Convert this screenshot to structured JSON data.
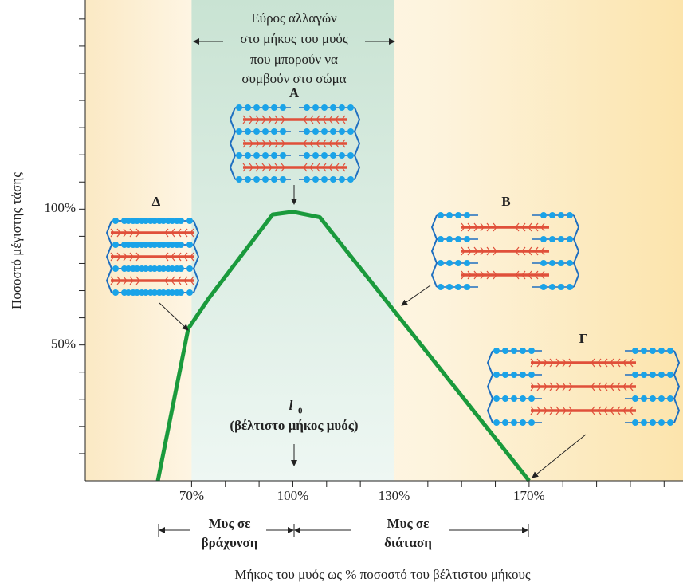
{
  "chart_data": {
    "type": "line",
    "x_label": "Μήκος του μυός ως % ποσοστό του βέλτιστου μήκους",
    "y_label": "Ποσοστό μέγιστης τάσης",
    "x": [
      60,
      69,
      75,
      94,
      100,
      108,
      170
    ],
    "series": [
      {
        "color": "#1a9a3c",
        "values": [
          0,
          56,
          67,
          98,
          99,
          97,
          0
        ]
      }
    ],
    "xlim": [
      38.5,
      215.6
    ],
    "ylim": [
      0,
      177
    ],
    "xticks": [
      {
        "value": 70,
        "label": "70%"
      },
      {
        "value": 100,
        "label": "100%"
      },
      {
        "value": 130,
        "label": "130%"
      },
      {
        "value": 170,
        "label": "170%"
      }
    ],
    "xminorticks": [
      80,
      90,
      110,
      120,
      140,
      150,
      160,
      180,
      190,
      200,
      210
    ],
    "yticks": [
      {
        "value": 50,
        "label": "50%"
      },
      {
        "value": 100,
        "label": "100%"
      }
    ],
    "yminorticks": [
      10,
      20,
      30,
      40,
      60,
      70,
      80,
      90,
      110,
      120,
      130,
      140,
      150,
      160,
      170
    ],
    "shaded_range": [
      70,
      130
    ],
    "range_text": [
      "Εύρος αλλαγών",
      "στο μήκος του μυός",
      "που μπορούν να",
      "συμβούν στο σώμα"
    ],
    "labels": [
      "Α",
      "Β",
      "Γ",
      "Δ"
    ],
    "optimum_symbol": "l",
    "optimum_subscript": "0",
    "optimum_text": "(βέλτιστο μήκος μυός)",
    "shortening": [
      "Μυς σε",
      "βράχυνση"
    ],
    "stretching": [
      "Μυς σε",
      "διάταση"
    ]
  }
}
